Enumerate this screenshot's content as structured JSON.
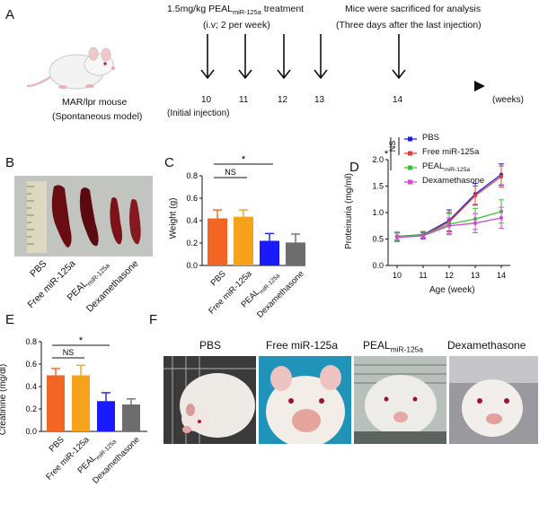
{
  "panelA": {
    "label": "A",
    "treatment_prefix": "1.5mg/kg PEAL",
    "treatment_sub": "miR-125a",
    "treatment_suffix": " treatment",
    "regimen": "(i.v; 2 per week)",
    "sacrifice_line1": "Mice were sacrificed for analysis",
    "sacrifice_line2": "(Three days after the last injection)",
    "weeks": [
      "10",
      "11",
      "12",
      "13",
      "14"
    ],
    "initial_injection": "(Initial injection)",
    "mouse_line1": "MAR/lpr mouse",
    "mouse_line2": "(Spontaneous model)",
    "axis_unit": "(weeks)"
  },
  "panelB": {
    "label": "B",
    "groups": [
      "PBS",
      "Free miR-125a",
      "PEAL",
      "Dexamethasone"
    ],
    "peal_sub": "miR-125a"
  },
  "panelC": {
    "label": "C",
    "sig_ns": "NS",
    "sig_star": "*"
  },
  "panelD": {
    "label": "D",
    "legend": [
      "PBS",
      "Free miR-125a",
      "PEAL",
      "Dexamethasone"
    ],
    "legend_peal_sub": "miR-125a",
    "sig_ns": "NS",
    "sig_star": "*"
  },
  "panelE": {
    "label": "E",
    "sig_ns": "NS",
    "sig_star": "*"
  },
  "panelF": {
    "label": "F",
    "titles": [
      "PBS",
      "Free miR-125a",
      "PEAL",
      "Dexamethasone"
    ],
    "peal_sub": "miR-125a"
  },
  "colors": {
    "pbs": "#f26522",
    "free": "#f7a21b",
    "peal": "#1a1aff",
    "dexa": "#6d6d6d",
    "line_pbs": "#1f1fd6",
    "line_free": "#e0403c",
    "line_peal": "#3cbf3c",
    "line_dexa": "#d14ad6"
  },
  "chart_data": [
    {
      "type": "bar",
      "panel": "C",
      "title": "",
      "xlabel": "",
      "ylabel": "Weight (g)",
      "ylim": [
        0.0,
        0.8
      ],
      "yticks": [
        "0.0",
        "0.2",
        "0.4",
        "0.6",
        "0.8"
      ],
      "categories": [
        "PBS",
        "Free miR-125a",
        "PEALmiR-125a",
        "Dexamethasone"
      ],
      "values": [
        0.42,
        0.435,
        0.22,
        0.205
      ],
      "errors": [
        0.075,
        0.06,
        0.065,
        0.075
      ],
      "tick_labels": [
        "PBS",
        "Free miR-125a",
        "PEAL",
        "Dexamethasone"
      ]
    },
    {
      "type": "line",
      "panel": "D",
      "title": "",
      "xlabel": "Age (week)",
      "ylabel": "Proteinuria (mg/ml)",
      "x": [
        10,
        11,
        12,
        13,
        14
      ],
      "xticks": [
        "10",
        "11",
        "12",
        "13",
        "14"
      ],
      "ylim": [
        0.0,
        2.0
      ],
      "yticks": [
        "0.0",
        "0.5",
        "1.0",
        "1.5",
        "2.0"
      ],
      "series": [
        {
          "name": "PBS",
          "values": [
            0.55,
            0.58,
            0.85,
            1.35,
            1.72
          ],
          "errors": [
            0.08,
            0.06,
            0.2,
            0.2,
            0.2
          ]
        },
        {
          "name": "Free miR-125a",
          "values": [
            0.55,
            0.57,
            0.82,
            1.32,
            1.68
          ],
          "errors": [
            0.07,
            0.06,
            0.18,
            0.18,
            0.2
          ]
        },
        {
          "name": "PEALmiR-125a",
          "values": [
            0.55,
            0.57,
            0.78,
            0.88,
            1.02
          ],
          "errors": [
            0.08,
            0.06,
            0.2,
            0.2,
            0.22
          ]
        },
        {
          "name": "Dexamethasone",
          "values": [
            0.53,
            0.56,
            0.75,
            0.8,
            0.9
          ],
          "errors": [
            0.08,
            0.06,
            0.15,
            0.18,
            0.2
          ]
        }
      ]
    },
    {
      "type": "bar",
      "panel": "E",
      "title": "",
      "xlabel": "",
      "ylabel": "Creatinine (mg/dl)",
      "ylim": [
        0.0,
        0.8
      ],
      "yticks": [
        "0.0",
        "0.2",
        "0.4",
        "0.6",
        "0.8"
      ],
      "categories": [
        "PBS",
        "Free miR-125a",
        "PEALmiR-125a",
        "Dexamethasone"
      ],
      "values": [
        0.5,
        0.5,
        0.27,
        0.24
      ],
      "errors": [
        0.06,
        0.09,
        0.075,
        0.05
      ],
      "tick_labels": [
        "PBS",
        "Free miR-125a",
        "PEAL",
        "Dexamethasone"
      ]
    }
  ]
}
